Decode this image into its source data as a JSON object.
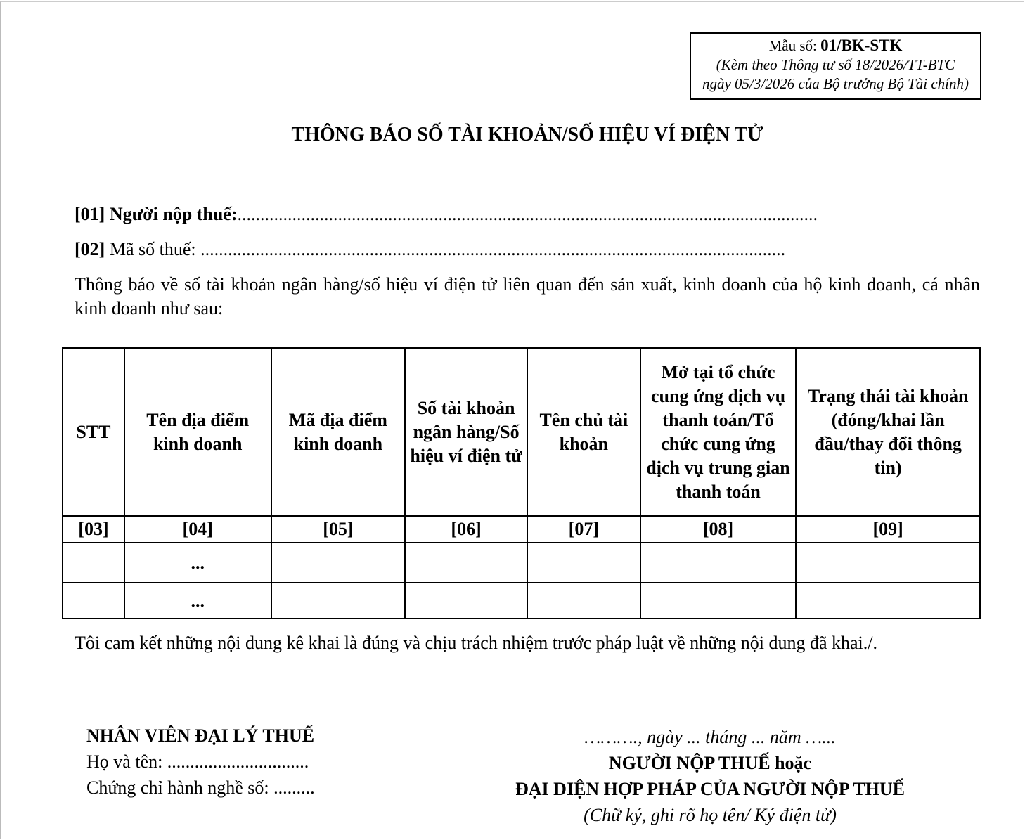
{
  "form_box": {
    "label": "Mẫu số: ",
    "code": "01/BK-STK",
    "line1": "(Kèm theo Thông tư số 18/2026/TT-BTC",
    "line2": "ngày 05/3/2026 của Bộ trưởng Bộ Tài chính)"
  },
  "title": "THÔNG BÁO SỐ TÀI KHOẢN/SỐ HIỆU VÍ ĐIỆN TỬ",
  "fields": {
    "taxpayer_label": "[01] Người nộp thuế:",
    "taxpayer_dots": "...............................................................................................................................",
    "tax_code_code": "[02]",
    "tax_code_label": " Mã số thuế: ",
    "tax_code_dots": "................................................................................................................................"
  },
  "intro": "Thông báo về số tài khoản ngân hàng/số hiệu ví điện tử liên quan đến sản xuất, kinh doanh của hộ kinh doanh, cá nhân kinh doanh như sau:",
  "table": {
    "headers": [
      "STT",
      "Tên địa điểm kinh doanh",
      "Mã địa điểm kinh doanh",
      "Số tài khoản ngân hàng/Số hiệu ví điện tử",
      "Tên chủ tài khoản",
      "Mở tại tổ chức cung ứng dịch vụ thanh toán/Tổ chức cung ứng dịch vụ trung gian thanh toán",
      "Trạng thái tài khoản (đóng/khai lần đầu/thay đổi thông tin)"
    ],
    "codes": [
      "[03]",
      "[04]",
      "[05]",
      "[06]",
      "[07]",
      "[08]",
      "[09]"
    ],
    "rows": [
      [
        "",
        "...",
        "",
        "",
        "",
        "",
        ""
      ],
      [
        "",
        "...",
        "",
        "",
        "",
        "",
        ""
      ]
    ]
  },
  "commitment": "Tôi cam kết những nội dung kê khai là đúng và chịu trách nhiệm trước pháp luật về những nội dung đã khai./.",
  "agent": {
    "title": "NHÂN VIÊN ĐẠI LÝ THUẾ",
    "name": "Họ và tên: ...............................",
    "cert": "Chứng chỉ hành nghề số: ........."
  },
  "signer": {
    "date": "………., ngày ... tháng ... năm …...",
    "title1": "NGƯỜI NỘP THUẾ hoặc",
    "title2": "ĐẠI DIỆN HỢP PHÁP CỦA NGƯỜI NỘP THUẾ",
    "note": "(Chữ ký, ghi rõ họ tên/ Ký điện tử)"
  }
}
